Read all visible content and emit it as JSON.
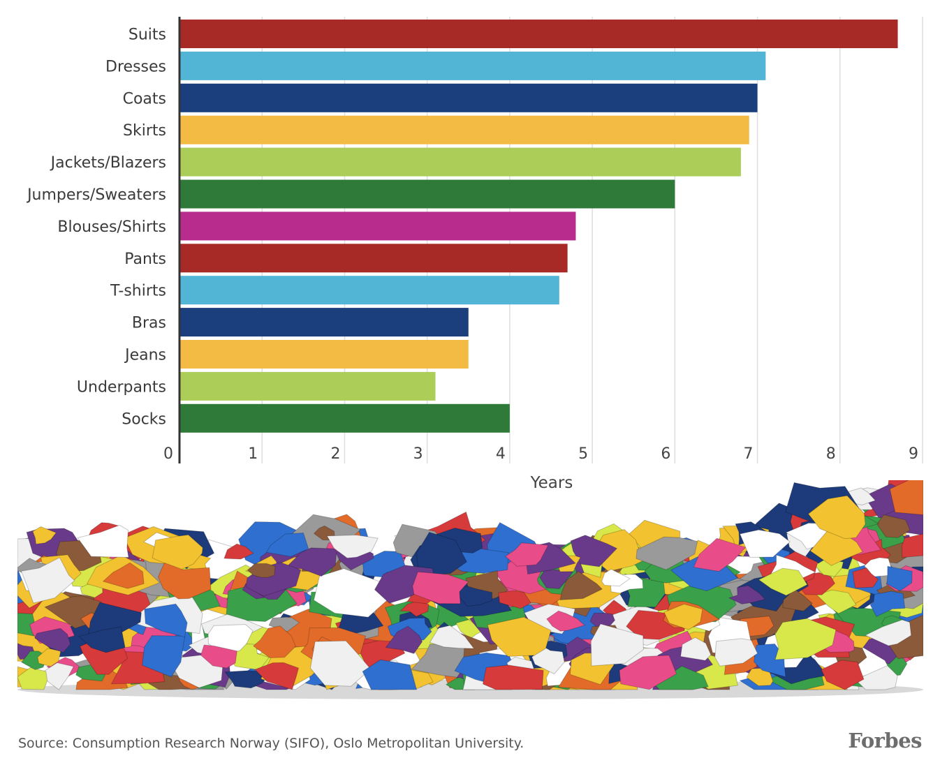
{
  "chart_data": {
    "type": "bar",
    "orientation": "horizontal",
    "categories": [
      "Suits",
      "Dresses",
      "Coats",
      "Skirts",
      "Jackets/Blazers",
      "Jumpers/Sweaters",
      "Blouses/Shirts",
      "Pants",
      "T-shirts",
      "Bras",
      "Jeans",
      "Underpants",
      "Socks"
    ],
    "values": [
      8.7,
      7.1,
      7.0,
      6.9,
      6.8,
      6.0,
      4.8,
      4.7,
      4.6,
      3.5,
      3.5,
      3.1,
      4.0
    ],
    "colors": [
      "#a82a27",
      "#52b5d6",
      "#1a3f7c",
      "#f3bb44",
      "#acce59",
      "#2f7a38",
      "#b72c8d",
      "#a82a27",
      "#52b5d6",
      "#1a3f7c",
      "#f3bb44",
      "#acce59",
      "#2f7a38"
    ],
    "xlim": [
      0,
      9
    ],
    "ticks": [
      "0",
      "1",
      "2",
      "3",
      "4",
      "5",
      "6",
      "7",
      "8",
      "9"
    ],
    "xlabel": "Years",
    "grid": true,
    "legend": "none"
  },
  "footer": {
    "source": "Source: Consumption Research Norway (SIFO), Oslo Metropolitan University.",
    "logo": "Forbes"
  },
  "illustration": {
    "name": "pile-of-clothes-photo",
    "palette": [
      "#d63a3a",
      "#2f6fd0",
      "#3aa04a",
      "#f2c230",
      "#e84d8a",
      "#ffffff",
      "#8a5a3a",
      "#e36b2a",
      "#9a9a9a",
      "#d8e84a",
      "#6a3a8a",
      "#1d3a7a",
      "#f0f0f0"
    ]
  }
}
